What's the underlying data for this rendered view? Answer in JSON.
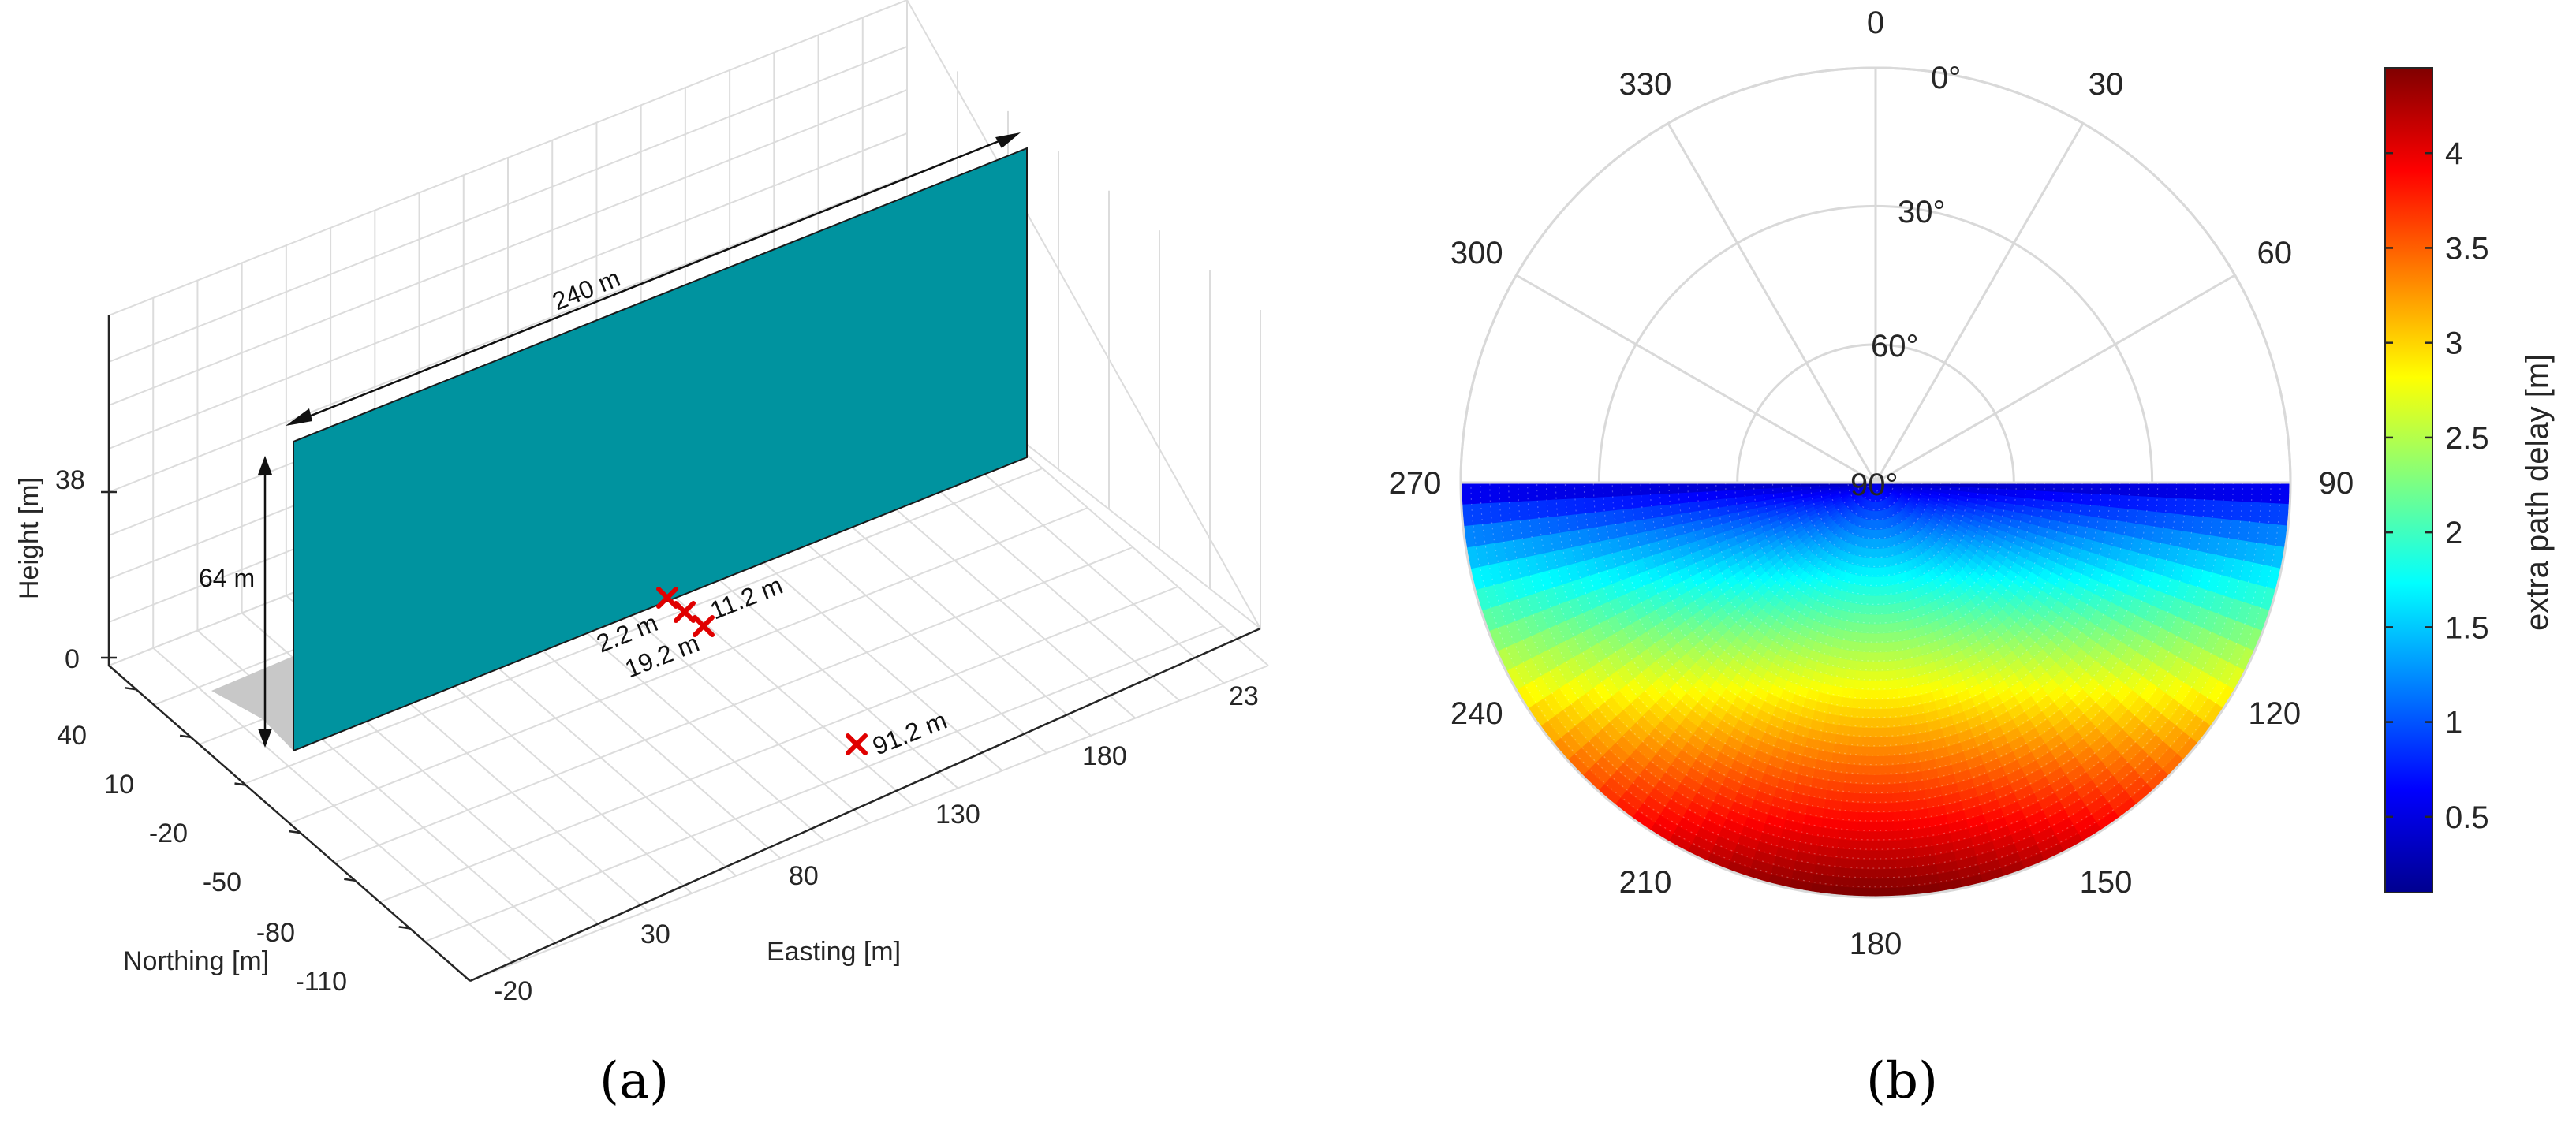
{
  "chart_data": [
    {
      "type": "3d-scene",
      "caption": "(a)",
      "xlabel": "Easting [m]",
      "ylabel": "Northing [m]",
      "zlabel": "Height [m]",
      "x_ticks": [
        "-20",
        "30",
        "80",
        "130",
        "180",
        "23"
      ],
      "y_ticks": [
        "40",
        "10",
        "-20",
        "-50",
        "-80",
        "-110"
      ],
      "z_ticks": [
        "0",
        "38"
      ],
      "wall": {
        "length_label": "240 m",
        "height_label": "64 m",
        "length_m": 240,
        "height_m": 64,
        "color": "#00939f"
      },
      "receivers": [
        {
          "label": "2.2 m",
          "distance_m": 2.2
        },
        {
          "label": "11.2 m",
          "distance_m": 11.2
        },
        {
          "label": "19.2 m",
          "distance_m": 19.2
        },
        {
          "label": "91.2 m",
          "distance_m": 91.2
        }
      ],
      "marker_color": "#e00000"
    },
    {
      "type": "polar-scatter",
      "caption": "(b)",
      "theta_ticks": [
        "0",
        "30",
        "60",
        "90",
        "120",
        "150",
        "180",
        "210",
        "240",
        "270",
        "300",
        "330"
      ],
      "r_ticks": [
        "0°",
        "30°",
        "60°",
        "90°"
      ],
      "colorbar": {
        "label": "extra path delay [m]",
        "ticks": [
          "0.5",
          "1",
          "1.5",
          "2",
          "2.5",
          "3",
          "3.5",
          "4"
        ],
        "range": [
          0.1,
          4.45
        ],
        "colormap": "jet"
      },
      "data_extent_azimuth_deg": [
        90,
        270
      ],
      "data_extent_elevation_deg": [
        0,
        90
      ],
      "min_delay_azimuth_deg": [
        90,
        270
      ],
      "max_delay_azimuth_deg": 180
    }
  ]
}
